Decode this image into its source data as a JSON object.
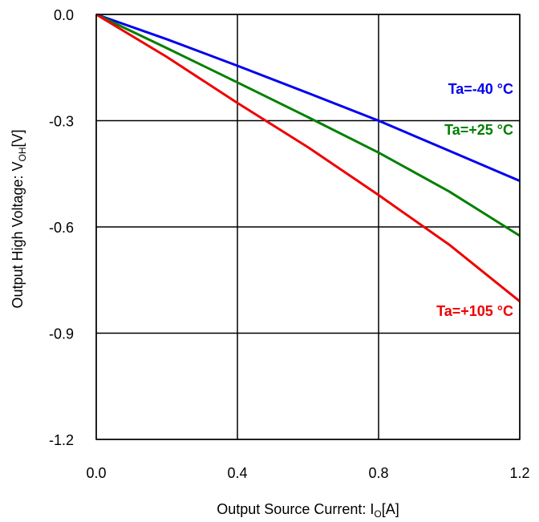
{
  "chart_data": {
    "type": "line",
    "xlabel": {
      "main": "Output Source Current: I",
      "sub": "O",
      "unit": "[A]"
    },
    "ylabel": {
      "main": "Output High Voltage: V",
      "sub": "OH",
      "unit": "[V]"
    },
    "xlim": [
      0.0,
      1.2
    ],
    "ylim": [
      -1.2,
      0.0
    ],
    "x_ticks": [
      "0.0",
      "0.4",
      "0.8",
      "1.2"
    ],
    "y_ticks": [
      "0.0",
      "-0.3",
      "-0.6",
      "-0.9",
      "-1.2"
    ],
    "x_tick_values": [
      0.0,
      0.4,
      0.8,
      1.2
    ],
    "y_tick_values": [
      0.0,
      -0.3,
      -0.6,
      -0.9,
      -1.2
    ],
    "grid": true,
    "series": [
      {
        "name": "Ta=-40 °C",
        "color": "#0000ee",
        "x": [
          0.0,
          0.2,
          0.4,
          0.6,
          0.8,
          1.0,
          1.2
        ],
        "y": [
          0.0,
          -0.07,
          -0.145,
          -0.222,
          -0.3,
          -0.385,
          -0.47
        ]
      },
      {
        "name": "Ta=+25 °C",
        "color": "#008000",
        "x": [
          0.0,
          0.2,
          0.4,
          0.6,
          0.8,
          1.0,
          1.2
        ],
        "y": [
          0.0,
          -0.095,
          -0.192,
          -0.29,
          -0.39,
          -0.5,
          -0.625
        ]
      },
      {
        "name": "Ta=+105 °C",
        "color": "#ee0000",
        "x": [
          0.0,
          0.2,
          0.4,
          0.6,
          0.8,
          1.0,
          1.2
        ],
        "y": [
          0.0,
          -0.12,
          -0.25,
          -0.375,
          -0.51,
          -0.65,
          -0.81
        ]
      }
    ]
  }
}
